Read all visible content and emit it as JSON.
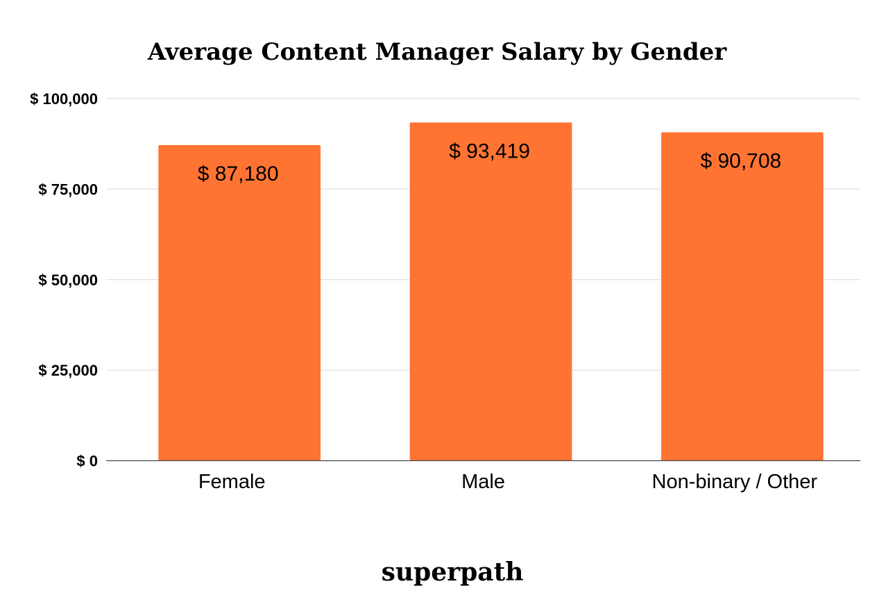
{
  "chart_data": {
    "type": "bar",
    "title": "Average Content Manager Salary by Gender",
    "categories": [
      "Female",
      "Male",
      "Non-binary / Other"
    ],
    "values": [
      87180,
      93419,
      90708
    ],
    "data_labels": [
      "$ 87,180",
      "$ 93,419",
      "$ 90,708"
    ],
    "ylim": [
      0,
      100000
    ],
    "yticks": [
      0,
      25000,
      50000,
      75000,
      100000
    ],
    "ytick_labels": [
      "$ 0",
      "$ 25,000",
      "$ 50,000",
      "$ 75,000",
      "$ 100,000"
    ],
    "xlabel": "",
    "ylabel": "",
    "grid": true,
    "legend": "none",
    "bar_color": "#ff7433"
  },
  "brand": {
    "name": "superpath"
  }
}
